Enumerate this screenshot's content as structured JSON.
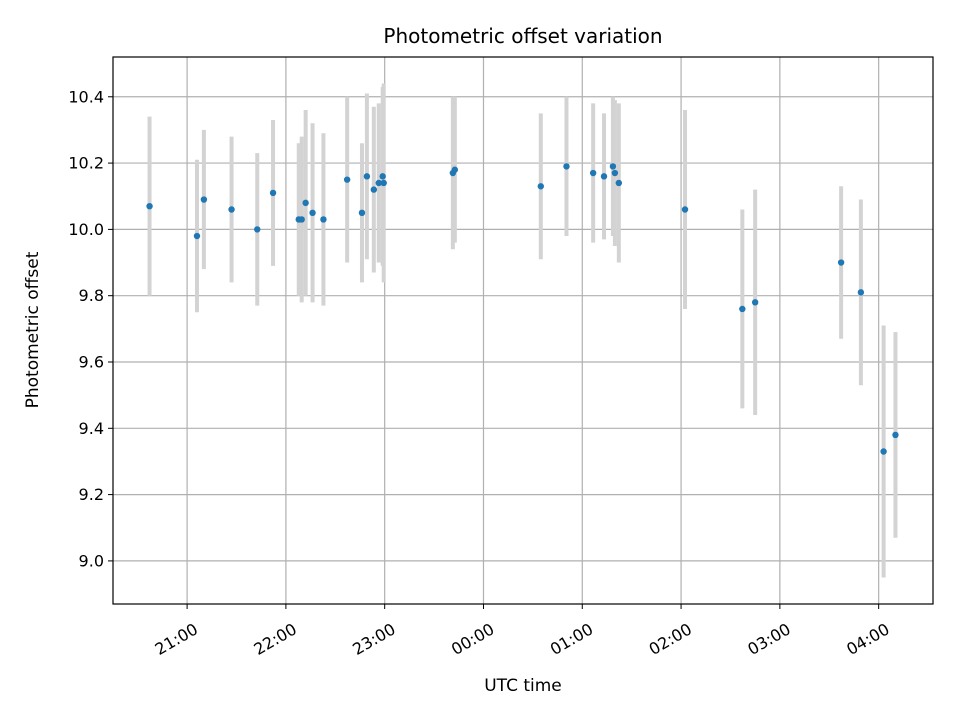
{
  "chart_data": {
    "type": "scatter",
    "title": "Photometric offset variation",
    "xlabel": "UTC time",
    "ylabel": "Photometric offset",
    "grid": true,
    "x_unit": "hours (UTC, continuing past midnight)",
    "xlim": [
      20.25,
      28.55
    ],
    "ylim": [
      8.87,
      10.52
    ],
    "x_ticks": [
      {
        "value": 21,
        "label": "21:00"
      },
      {
        "value": 22,
        "label": "22:00"
      },
      {
        "value": 23,
        "label": "23:00"
      },
      {
        "value": 24,
        "label": "00:00"
      },
      {
        "value": 25,
        "label": "01:00"
      },
      {
        "value": 26,
        "label": "02:00"
      },
      {
        "value": 27,
        "label": "03:00"
      },
      {
        "value": 28,
        "label": "04:00"
      }
    ],
    "y_ticks": [
      9.0,
      9.2,
      9.4,
      9.6,
      9.8,
      10.0,
      10.2,
      10.4
    ],
    "y_tick_labels": [
      "9.0",
      "9.2",
      "9.4",
      "9.6",
      "9.8",
      "10.0",
      "10.2",
      "10.4"
    ],
    "point_color": "#1f77b4",
    "errorbar_color": "#d3d3d3",
    "points": [
      {
        "x": 20.62,
        "y": 10.07,
        "err": 0.27
      },
      {
        "x": 21.1,
        "y": 9.98,
        "err": 0.23
      },
      {
        "x": 21.17,
        "y": 10.09,
        "err": 0.21
      },
      {
        "x": 21.45,
        "y": 10.06,
        "err": 0.22
      },
      {
        "x": 21.71,
        "y": 10.0,
        "err": 0.23
      },
      {
        "x": 21.87,
        "y": 10.11,
        "err": 0.22
      },
      {
        "x": 22.13,
        "y": 10.03,
        "err": 0.23
      },
      {
        "x": 22.16,
        "y": 10.03,
        "err": 0.25
      },
      {
        "x": 22.2,
        "y": 10.08,
        "err": 0.28
      },
      {
        "x": 22.27,
        "y": 10.05,
        "err": 0.27
      },
      {
        "x": 22.38,
        "y": 10.03,
        "err": 0.26
      },
      {
        "x": 22.62,
        "y": 10.15,
        "err": 0.25
      },
      {
        "x": 22.77,
        "y": 10.05,
        "err": 0.21
      },
      {
        "x": 22.82,
        "y": 10.16,
        "err": 0.25
      },
      {
        "x": 22.89,
        "y": 10.12,
        "err": 0.25
      },
      {
        "x": 22.94,
        "y": 10.14,
        "err": 0.24
      },
      {
        "x": 22.98,
        "y": 10.16,
        "err": 0.27
      },
      {
        "x": 22.99,
        "y": 10.14,
        "err": 0.3
      },
      {
        "x": 23.69,
        "y": 10.17,
        "err": 0.23
      },
      {
        "x": 23.71,
        "y": 10.18,
        "err": 0.22
      },
      {
        "x": 24.58,
        "y": 10.13,
        "err": 0.22
      },
      {
        "x": 24.84,
        "y": 10.19,
        "err": 0.21
      },
      {
        "x": 25.11,
        "y": 10.17,
        "err": 0.21
      },
      {
        "x": 25.22,
        "y": 10.16,
        "err": 0.19
      },
      {
        "x": 25.31,
        "y": 10.19,
        "err": 0.21
      },
      {
        "x": 25.33,
        "y": 10.17,
        "err": 0.22
      },
      {
        "x": 25.37,
        "y": 10.14,
        "err": 0.24
      },
      {
        "x": 26.04,
        "y": 10.06,
        "err": 0.3
      },
      {
        "x": 26.62,
        "y": 9.76,
        "err": 0.3
      },
      {
        "x": 26.75,
        "y": 9.78,
        "err": 0.34
      },
      {
        "x": 27.62,
        "y": 9.9,
        "err": 0.23
      },
      {
        "x": 27.82,
        "y": 9.81,
        "err": 0.28
      },
      {
        "x": 28.05,
        "y": 9.33,
        "err": 0.38
      },
      {
        "x": 28.17,
        "y": 9.38,
        "err": 0.31
      }
    ]
  }
}
